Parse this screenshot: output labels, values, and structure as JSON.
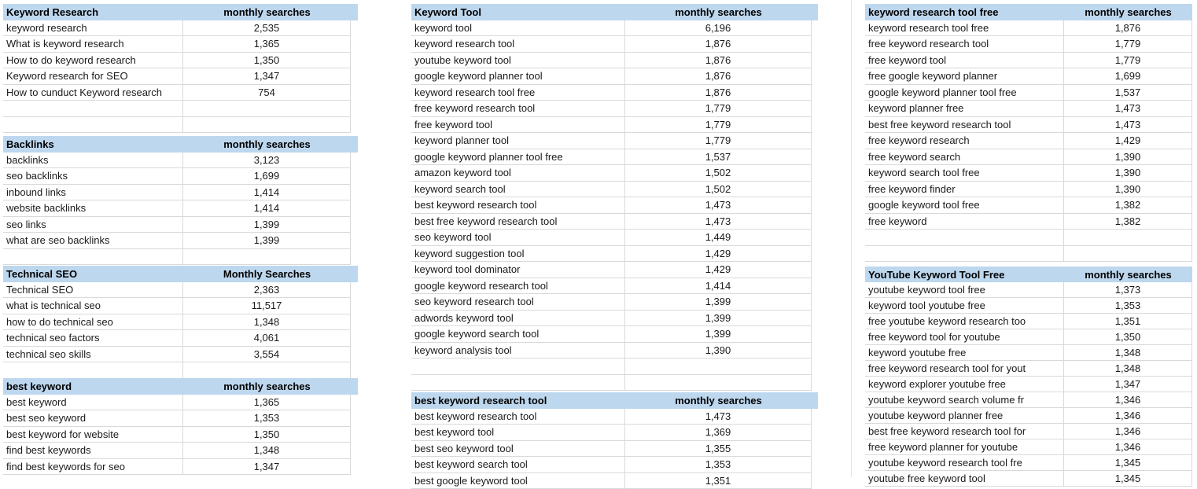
{
  "colors": {
    "header_fill": "#BDD7EE",
    "grid_border": "#D9D9D9",
    "header_text": "#000000",
    "body_text": "#1A1A1A"
  },
  "tables": [
    {
      "title": "Keyword Research",
      "value_header": "monthly searches",
      "rows": [
        {
          "k": "keyword research",
          "v": "2,535"
        },
        {
          "k": "What is keyword research",
          "v": "1,365"
        },
        {
          "k": "How to do keyword research",
          "v": "1,350"
        },
        {
          "k": "Keyword research for SEO",
          "v": "1,347"
        },
        {
          "k": "How to cunduct Keyword research",
          "v": "754"
        },
        {
          "k": "",
          "v": ""
        },
        {
          "k": "",
          "v": ""
        }
      ]
    },
    {
      "title": "Backlinks",
      "value_header": "monthly searches",
      "rows": [
        {
          "k": "backlinks",
          "v": "3,123"
        },
        {
          "k": "seo backlinks",
          "v": "1,699"
        },
        {
          "k": "inbound links",
          "v": "1,414"
        },
        {
          "k": "website backlinks",
          "v": "1,414"
        },
        {
          "k": "seo links",
          "v": "1,399"
        },
        {
          "k": "what are seo backlinks",
          "v": "1,399"
        },
        {
          "k": "",
          "v": ""
        }
      ]
    },
    {
      "title": "Technical SEO",
      "value_header": "Monthly Searches",
      "rows": [
        {
          "k": "Technical SEO",
          "v": "2,363"
        },
        {
          "k": "what is technical seo",
          "v": "11,517"
        },
        {
          "k": "how to do technical seo",
          "v": "1,348"
        },
        {
          "k": "technical seo factors",
          "v": "4,061"
        },
        {
          "k": "technical seo skills",
          "v": "3,554"
        },
        {
          "k": "",
          "v": ""
        }
      ]
    },
    {
      "title": "best keyword",
      "value_header": "monthly searches",
      "rows": [
        {
          "k": "best keyword",
          "v": "1,365"
        },
        {
          "k": "best seo keyword",
          "v": "1,353"
        },
        {
          "k": "best keyword for website",
          "v": "1,350"
        },
        {
          "k": "find best keywords",
          "v": "1,348"
        },
        {
          "k": "find best keywords for seo",
          "v": "1,347"
        }
      ]
    },
    {
      "title": "Keyword Tool",
      "value_header": "monthly searches",
      "rows": [
        {
          "k": "keyword tool",
          "v": "6,196"
        },
        {
          "k": "keyword research tool",
          "v": "1,876"
        },
        {
          "k": "youtube keyword tool",
          "v": "1,876"
        },
        {
          "k": "google keyword planner tool",
          "v": "1,876"
        },
        {
          "k": "keyword research tool free",
          "v": "1,876"
        },
        {
          "k": "free keyword research tool",
          "v": "1,779"
        },
        {
          "k": "free keyword tool",
          "v": "1,779"
        },
        {
          "k": "keyword planner tool",
          "v": "1,779"
        },
        {
          "k": "google keyword planner tool free",
          "v": "1,537"
        },
        {
          "k": "amazon keyword tool",
          "v": "1,502"
        },
        {
          "k": "keyword search tool",
          "v": "1,502"
        },
        {
          "k": "best keyword research tool",
          "v": "1,473"
        },
        {
          "k": "best free keyword research tool",
          "v": "1,473"
        },
        {
          "k": "seo keyword tool",
          "v": "1,449"
        },
        {
          "k": "keyword suggestion tool",
          "v": "1,429"
        },
        {
          "k": "keyword tool dominator",
          "v": "1,429"
        },
        {
          "k": "google keyword research tool",
          "v": "1,414"
        },
        {
          "k": "seo keyword research tool",
          "v": "1,399"
        },
        {
          "k": "adwords keyword tool",
          "v": "1,399"
        },
        {
          "k": "google keyword search tool",
          "v": "1,399"
        },
        {
          "k": "keyword analysis tool",
          "v": "1,390"
        },
        {
          "k": "",
          "v": ""
        },
        {
          "k": "",
          "v": ""
        }
      ]
    },
    {
      "title": "best keyword research tool",
      "value_header": "monthly searches",
      "rows": [
        {
          "k": "best keyword research tool",
          "v": "1,473"
        },
        {
          "k": "best keyword tool",
          "v": "1,369"
        },
        {
          "k": "best seo keyword tool",
          "v": "1,355"
        },
        {
          "k": "best keyword search tool",
          "v": "1,353"
        },
        {
          "k": "best google keyword tool",
          "v": "1,351"
        }
      ]
    },
    {
      "title": "keyword research tool free",
      "value_header": "monthly searches",
      "rows": [
        {
          "k": "keyword research tool free",
          "v": "1,876"
        },
        {
          "k": "free keyword research tool",
          "v": "1,779"
        },
        {
          "k": "free keyword tool",
          "v": "1,779"
        },
        {
          "k": "free google keyword planner",
          "v": "1,699"
        },
        {
          "k": "google keyword planner tool free",
          "v": "1,537"
        },
        {
          "k": "keyword planner free",
          "v": "1,473"
        },
        {
          "k": "best free keyword research tool",
          "v": "1,473"
        },
        {
          "k": "free keyword research",
          "v": "1,429"
        },
        {
          "k": "free keyword search",
          "v": "1,390"
        },
        {
          "k": "keyword search tool free",
          "v": "1,390"
        },
        {
          "k": "free keyword finder",
          "v": "1,390"
        },
        {
          "k": "google keyword tool free",
          "v": "1,382"
        },
        {
          "k": "free keyword",
          "v": "1,382"
        },
        {
          "k": "",
          "v": ""
        },
        {
          "k": "",
          "v": ""
        }
      ]
    },
    {
      "title": "YouTube Keyword Tool Free",
      "value_header": "monthly searches",
      "rows": [
        {
          "k": "youtube keyword tool free",
          "v": "1,373"
        },
        {
          "k": "keyword tool youtube free",
          "v": "1,353"
        },
        {
          "k": "free youtube keyword research too",
          "v": "1,351"
        },
        {
          "k": "free keyword tool for youtube",
          "v": "1,350"
        },
        {
          "k": "keyword youtube free",
          "v": "1,348"
        },
        {
          "k": "free keyword research tool for yout",
          "v": "1,348"
        },
        {
          "k": "keyword explorer youtube free",
          "v": "1,347"
        },
        {
          "k": "youtube keyword search volume fr",
          "v": "1,346"
        },
        {
          "k": "youtube keyword planner free",
          "v": "1,346"
        },
        {
          "k": "best free keyword research tool for",
          "v": "1,346"
        },
        {
          "k": "free keyword planner for youtube",
          "v": "1,346"
        },
        {
          "k": "youtube keyword research tool fre",
          "v": "1,345"
        },
        {
          "k": "youtube free keyword tool",
          "v": "1,345"
        }
      ]
    }
  ]
}
